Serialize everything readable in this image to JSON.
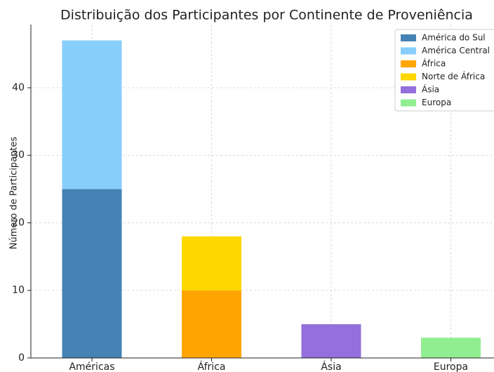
{
  "chart_data": {
    "type": "stacked_bar",
    "title": "Distribuição dos Participantes por Continente de Proveniência",
    "y_label": "Número de Participantes",
    "categories": [
      "Américas",
      "África",
      "Ásia",
      "Europa"
    ],
    "series": [
      {
        "name": "América do Sul",
        "color": "#4682b4",
        "values": [
          25,
          null,
          null,
          null
        ]
      },
      {
        "name": "América Central",
        "color": "#87cefa",
        "values": [
          22,
          null,
          null,
          null
        ]
      },
      {
        "name": "África",
        "color": "#ffa500",
        "values": [
          null,
          10,
          null,
          null
        ]
      },
      {
        "name": "Norte de África",
        "color": "#ffd700",
        "values": [
          null,
          8,
          null,
          null
        ]
      },
      {
        "name": "Ásia",
        "color": "#9370db",
        "values": [
          null,
          null,
          5,
          null
        ]
      },
      {
        "name": "Europa",
        "color": "#90ee90",
        "values": [
          null,
          null,
          null,
          3
        ]
      }
    ],
    "ylim": [
      0,
      49.35
    ],
    "yticks": [
      0,
      10,
      20,
      30,
      40
    ],
    "grid": true,
    "legend": "upper right"
  }
}
